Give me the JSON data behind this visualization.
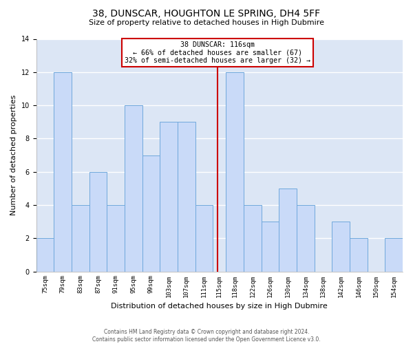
{
  "title": "38, DUNSCAR, HOUGHTON LE SPRING, DH4 5FF",
  "subtitle": "Size of property relative to detached houses in High Dubmire",
  "xlabel": "Distribution of detached houses by size in High Dubmire",
  "ylabel": "Number of detached properties",
  "bin_labels": [
    "75sqm",
    "79sqm",
    "83sqm",
    "87sqm",
    "91sqm",
    "95sqm",
    "99sqm",
    "103sqm",
    "107sqm",
    "111sqm",
    "115sqm",
    "118sqm",
    "122sqm",
    "126sqm",
    "130sqm",
    "134sqm",
    "138sqm",
    "142sqm",
    "146sqm",
    "150sqm",
    "154sqm"
  ],
  "bar_values": [
    2,
    12,
    4,
    6,
    4,
    10,
    7,
    9,
    9,
    4,
    0,
    12,
    4,
    3,
    5,
    4,
    0,
    3,
    2,
    0,
    2
  ],
  "bar_color": "#c9daf8",
  "bar_edgecolor": "#6fa8dc",
  "ylim": [
    0,
    14
  ],
  "yticks": [
    0,
    2,
    4,
    6,
    8,
    10,
    12,
    14
  ],
  "bin_edges": [
    75,
    79,
    83,
    87,
    91,
    95,
    99,
    103,
    107,
    111,
    115,
    118,
    122,
    126,
    130,
    134,
    138,
    142,
    146,
    150,
    154,
    158
  ],
  "vline_x": 116,
  "vline_color": "#cc0000",
  "annotation_title": "38 DUNSCAR: 116sqm",
  "annotation_line1": "← 66% of detached houses are smaller (67)",
  "annotation_line2": "32% of semi-detached houses are larger (32) →",
  "annotation_box_edgecolor": "#cc0000",
  "annotation_box_facecolor": "#ffffff",
  "footer1": "Contains HM Land Registry data © Crown copyright and database right 2024.",
  "footer2": "Contains public sector information licensed under the Open Government Licence v3.0.",
  "bg_color": "#ffffff",
  "ax_bg_color": "#dce6f5",
  "grid_color": "#ffffff",
  "title_fontsize": 10,
  "subtitle_fontsize": 8,
  "ylabel_fontsize": 8,
  "xlabel_fontsize": 8,
  "tick_fontsize": 6.5,
  "footer_fontsize": 5.5
}
